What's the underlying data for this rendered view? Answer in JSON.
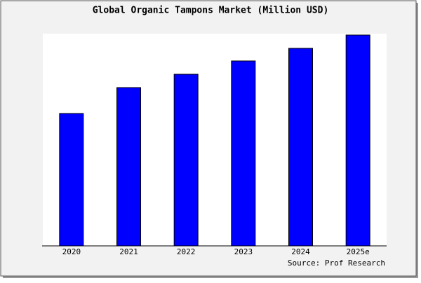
{
  "chart_data": {
    "type": "bar",
    "title": "Global Organic Tampons Market (Million USD)",
    "categories": [
      "2020",
      "2021",
      "2022",
      "2023",
      "2024",
      "2025e"
    ],
    "values": [
      189,
      226,
      245,
      264,
      282,
      301
    ],
    "color": "#0000ff",
    "ylim": [
      0,
      303
    ],
    "source": "Source: Prof Research"
  }
}
